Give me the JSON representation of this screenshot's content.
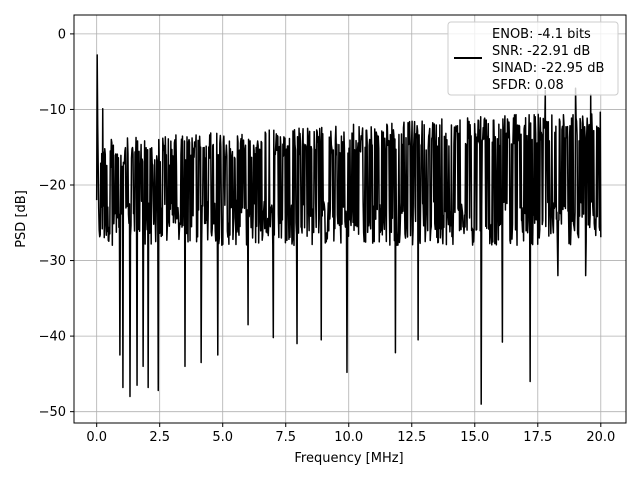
{
  "chart_data": {
    "type": "line",
    "xlabel": "Frequency [MHz]",
    "ylabel": "PSD [dB]",
    "xlim": [
      -0.9,
      21.0
    ],
    "ylim": [
      -51.5,
      2.5
    ],
    "xticks": [
      0.0,
      2.5,
      5.0,
      7.5,
      10.0,
      12.5,
      15.0,
      17.5,
      20.0
    ],
    "xtick_labels": [
      "0.0",
      "2.5",
      "5.0",
      "7.5",
      "10.0",
      "12.5",
      "15.0",
      "17.5",
      "20.0"
    ],
    "yticks": [
      0,
      -10,
      -20,
      -30,
      -40,
      -50
    ],
    "ytick_labels": [
      "0",
      "−10",
      "−20",
      "−30",
      "−40",
      "−50"
    ],
    "grid": true,
    "legend_position": "top-right",
    "series": [
      {
        "name": "ENOB: -4.1 bits\nSNR: -22.91 dB\nSINAD: -22.95 dB\nSFDR: 0.08",
        "color": "#000000",
        "description": "dense noisy power spectral density trace sampled at ~1000 points",
        "x": [
          0.0,
          0.1,
          0.2,
          0.3,
          0.5,
          0.75,
          1.0,
          1.1,
          1.2,
          1.3,
          1.6,
          2.0,
          2.5,
          3.0,
          3.5,
          4.0,
          4.5,
          5.0,
          5.5,
          6.0,
          6.5,
          7.0,
          7.5,
          8.0,
          8.5,
          9.0,
          9.9,
          10.5,
          11.0,
          11.8,
          12.5,
          13.0,
          14.0,
          15.0,
          15.2,
          16.0,
          16.5,
          17.2,
          17.5,
          18.0,
          18.5,
          19.0,
          19.5,
          20.0
        ],
        "y": [
          -2.8,
          -22.0,
          -10.0,
          -28.8,
          -25.0,
          -20.0,
          -42.5,
          -15.0,
          -46.8,
          -18.0,
          -48.0,
          -19.0,
          -47.2,
          -20.0,
          -37.0,
          -19.0,
          -39.0,
          -20.0,
          -40.0,
          -19.0,
          -36.0,
          -20.0,
          -42.5,
          -20.0,
          -40.0,
          -19.0,
          -44.8,
          -20.0,
          -38.0,
          -42.2,
          -20.0,
          -41.0,
          -38.0,
          -19.0,
          -49.0,
          -20.0,
          -38.0,
          -40.8,
          -46.0,
          -19.0,
          -32.0,
          -30.0,
          -25.0,
          -19.5
        ]
      }
    ],
    "noise_profile": {
      "x_start": 0.0,
      "x_end": 20.0,
      "typical_top_low_freq": -14.0,
      "typical_top_high_freq": -10.0,
      "typical_bottom": -28.0,
      "peak_highs": [
        {
          "x": 0.03,
          "y": -2.8
        },
        {
          "x": 0.25,
          "y": -9.9
        },
        {
          "x": 17.8,
          "y": -7.5
        },
        {
          "x": 19.0,
          "y": -7.2
        },
        {
          "x": 19.6,
          "y": -8.0
        }
      ],
      "deep_lows": [
        {
          "x": 0.92,
          "y": -42.5
        },
        {
          "x": 1.05,
          "y": -46.8
        },
        {
          "x": 1.33,
          "y": -48.0
        },
        {
          "x": 1.6,
          "y": -46.5
        },
        {
          "x": 1.85,
          "y": -44.0
        },
        {
          "x": 2.05,
          "y": -46.8
        },
        {
          "x": 2.45,
          "y": -47.2
        },
        {
          "x": 3.5,
          "y": -44.0
        },
        {
          "x": 4.15,
          "y": -43.5
        },
        {
          "x": 4.8,
          "y": -42.5
        },
        {
          "x": 6.0,
          "y": -38.5
        },
        {
          "x": 7.0,
          "y": -40.2
        },
        {
          "x": 7.95,
          "y": -41.0
        },
        {
          "x": 8.9,
          "y": -40.5
        },
        {
          "x": 9.93,
          "y": -44.8
        },
        {
          "x": 11.85,
          "y": -42.2
        },
        {
          "x": 12.75,
          "y": -40.5
        },
        {
          "x": 15.25,
          "y": -49.0
        },
        {
          "x": 16.1,
          "y": -40.8
        },
        {
          "x": 17.2,
          "y": -46.0
        },
        {
          "x": 18.3,
          "y": -32.0
        },
        {
          "x": 19.4,
          "y": -32.0
        }
      ]
    }
  },
  "legend": {
    "line1": "ENOB: -4.1 bits",
    "line2": "SNR: -22.91 dB",
    "line3": "SINAD: -22.95 dB",
    "line4": "SFDR: 0.08"
  }
}
